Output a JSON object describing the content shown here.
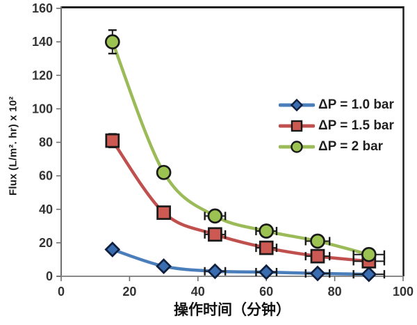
{
  "figure": {
    "background": "#ffffff"
  },
  "chart_data": {
    "type": "line",
    "title": "",
    "xlabel": "操作时间（分钟）",
    "ylabel": "Flux (L/m². hr) x 10²",
    "xlim": [
      0,
      100
    ],
    "ylim": [
      0,
      160
    ],
    "xticks": [
      0,
      20,
      40,
      60,
      80,
      100
    ],
    "yticks": [
      0,
      20,
      40,
      60,
      80,
      100,
      120,
      140,
      160
    ],
    "grid": false,
    "legend_position": "middle-right",
    "smooth_lines": true,
    "error_bar_color": "#1a1a1a",
    "axis_style": {
      "top_border_color": "#1f1f1f",
      "right_border_color": "#1f1f1f",
      "left_axis_color": "#6e6e6e",
      "bottom_axis_color": "#8a8a8a",
      "tick_color": "#6e6e6e",
      "tick_label_color": "#333333"
    },
    "series": [
      {
        "name": "ΔP = 1.0 bar",
        "marker": "diamond",
        "line_color": "#4a7ebb",
        "marker_fill": "#3a6db0",
        "marker_stroke": "#0f1f3d",
        "points": [
          {
            "x": 15,
            "y": 16
          },
          {
            "x": 30,
            "y": 6
          },
          {
            "x": 45,
            "y": 3,
            "ex": 3
          },
          {
            "x": 60,
            "y": 2.5,
            "ex": 3
          },
          {
            "x": 75,
            "y": 1.7,
            "ex": 3.5
          },
          {
            "x": 90,
            "y": 1.2,
            "ex": 4.5
          }
        ]
      },
      {
        "name": "ΔP = 1.5 bar",
        "marker": "square",
        "line_color": "#c0504d",
        "marker_fill": "#cd5a52",
        "marker_stroke": "#1a1a1a",
        "points": [
          {
            "x": 15,
            "y": 81,
            "ey": 4
          },
          {
            "x": 30,
            "y": 38
          },
          {
            "x": 45,
            "y": 25,
            "ex": 3
          },
          {
            "x": 60,
            "y": 17,
            "ex": 3
          },
          {
            "x": 75,
            "y": 12,
            "ex": 3.5
          },
          {
            "x": 90,
            "y": 9,
            "ex": 4.5
          }
        ]
      },
      {
        "name": "ΔP = 2 bar",
        "marker": "circle",
        "line_color": "#9bbb59",
        "marker_fill": "#9cc351",
        "marker_stroke": "#1a1a1a",
        "points": [
          {
            "x": 15,
            "y": 140,
            "ey": 7
          },
          {
            "x": 30,
            "y": 62
          },
          {
            "x": 45,
            "y": 36,
            "ex": 3
          },
          {
            "x": 60,
            "y": 27,
            "ex": 3
          },
          {
            "x": 75,
            "y": 21,
            "ex": 3.5
          },
          {
            "x": 90,
            "y": 13,
            "ex": 4.5
          }
        ]
      }
    ]
  }
}
